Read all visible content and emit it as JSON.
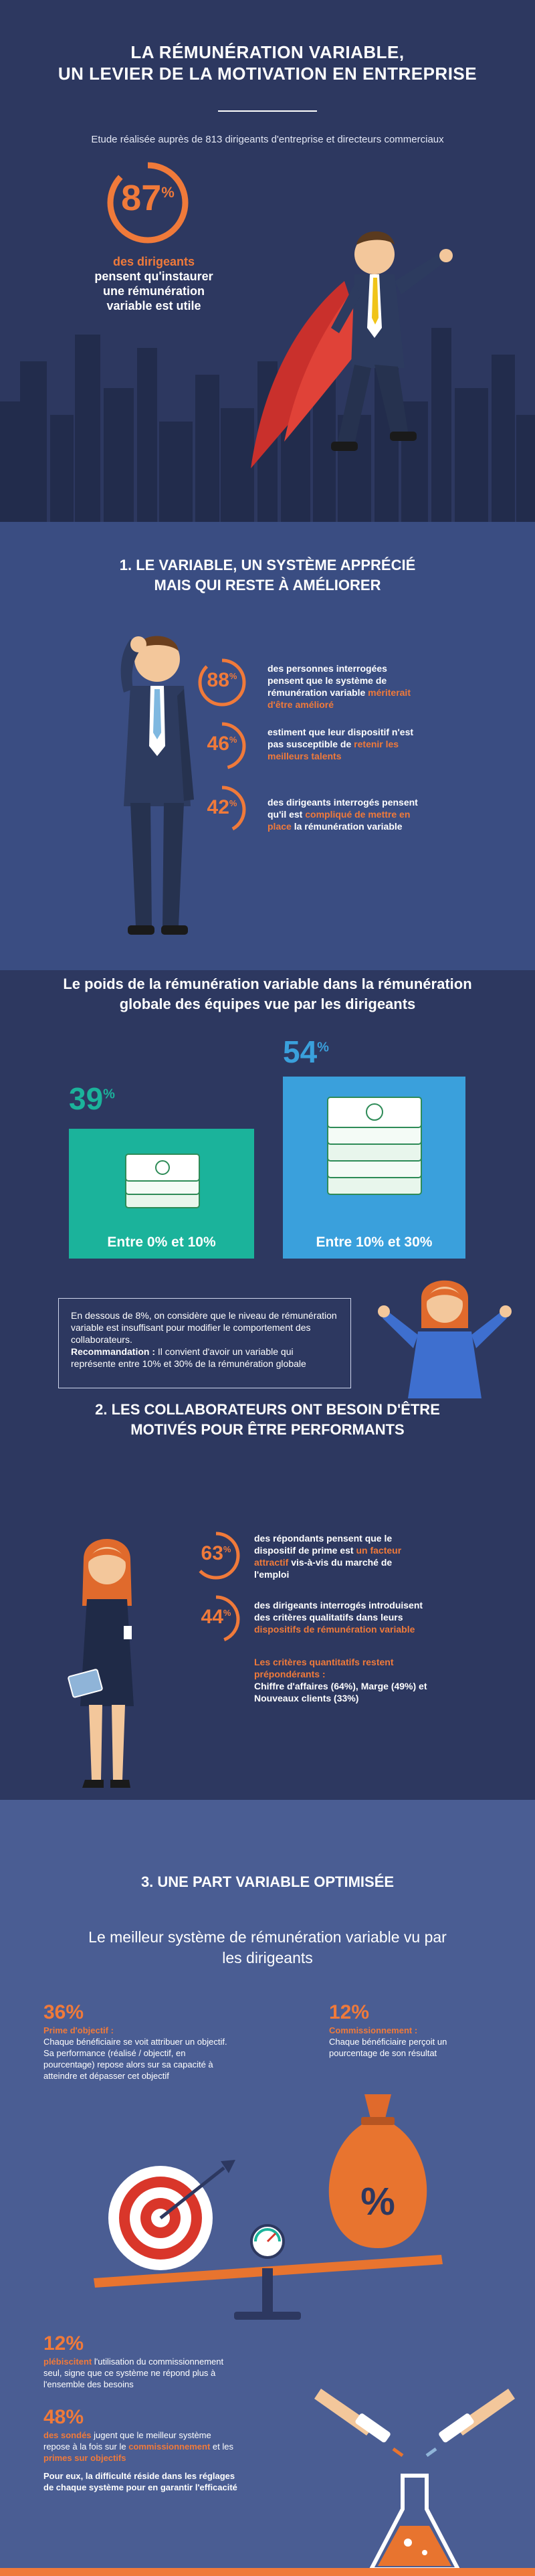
{
  "colors": {
    "navy": "#2d3860",
    "blue": "#3a4d82",
    "mid": "#4a5d93",
    "orange": "#f07a3a",
    "teal": "#1bb39b",
    "sky": "#3aa0dc"
  },
  "header": {
    "title_line1": "LA RÉMUNÉRATION VARIABLE,",
    "title_line2": "UN LEVIER DE LA MOTIVATION EN ENTREPRISE",
    "subtitle": "Etude réalisée auprès de 813 dirigeants d'entreprise et directeurs commerciaux",
    "hero_value": "87",
    "hero_unit": "%",
    "hero_label_hl": "des dirigeants",
    "hero_label": "pensent qu'instaurer une rémunération variable est utile"
  },
  "section1": {
    "title_line1": "1. LE VARIABLE, UN SYSTÈME APPRÉCIÉ",
    "title_line2": "MAIS QUI RESTE À AMÉLIORER",
    "stats": [
      {
        "value": "88",
        "unit": "%",
        "text_a": "des personnes interrogées pensent que le système de rémunération variable ",
        "text_hl": "mériterait d'être amélioré",
        "text_b": ""
      },
      {
        "value": "46",
        "unit": "%",
        "text_a": "estiment que leur dispositif n'est pas susceptible de ",
        "text_hl": "retenir les meilleurs talents",
        "text_b": ""
      },
      {
        "value": "42",
        "unit": "%",
        "text_a": "des dirigeants interrogés pensent qu'il est ",
        "text_hl": "compliqué de mettre en place",
        "text_b": " la rémunération variable"
      }
    ]
  },
  "weight": {
    "title_line1": "Le poids de la rémunération variable dans la rémunération",
    "title_line2": "globale des équipes vue par les dirigeants",
    "left_value": "39",
    "left_unit": "%",
    "left_label": "Entre 0% et 10%",
    "right_value": "54",
    "right_unit": "%",
    "right_label": "Entre 10% et 30%",
    "note_a": "En dessous de 8%, on considère que le niveau de rémunération variable est insuffisant pour modifier le comportement des collaborateurs.",
    "note_b_bold": "Recommandation :",
    "note_b": " Il convient d'avoir un variable qui représente entre 10% et 30% de la rémunération globale"
  },
  "section2": {
    "title_line1": "2. LES COLLABORATEURS ONT BESOIN D'ÊTRE",
    "title_line2": "MOTIVÉS POUR ÊTRE PERFORMANTS",
    "stats": [
      {
        "value": "63",
        "unit": "%",
        "text_a": "des répondants pensent que le dispositif de prime est ",
        "text_hl": "un facteur attractif",
        "text_b": " vis-à-vis du marché de l'emploi"
      },
      {
        "value": "44",
        "unit": "%",
        "text_a": "des dirigeants interrogés introduisent des critères qualitatifs dans leurs ",
        "text_hl": "dispositifs de rémunération variable",
        "text_b": ""
      }
    ],
    "criteria_hl": "Les critères quantitatifs restent prépondérants :",
    "criteria": "Chiffre d'affaires (64%), Marge (49%) et Nouveaux clients (33%)"
  },
  "section3": {
    "title": "3. UNE PART VARIABLE OPTIMISÉE",
    "subtitle_line1": "Le meilleur système de rémunération variable vu par",
    "subtitle_line2": "les dirigeants",
    "left_value": "36%",
    "left_title": "Prime d'objectif :",
    "left_text": "Chaque bénéficiaire se voit attribuer un objectif. Sa performance (réalisé / objectif, en pourcentage) repose alors sur sa capacité à atteindre et dépasser cet objectif",
    "right_value": "12%",
    "right_title": "Commissionnement :",
    "right_text": "Chaque bénéficiaire perçoit un pourcentage de son résultat",
    "bag_symbol": "%",
    "bottom1_value": "12%",
    "bottom1_hl": "plébiscitent",
    "bottom1_text": " l'utilisation du commissionnement seul, signe que ce système ne répond plus à l'ensemble des besoins",
    "bottom2_value": "48%",
    "bottom2_hl": "des sondés",
    "bottom2_text_a": " jugent que le meilleur système repose à la fois sur le ",
    "bottom2_hl2": "commissionnement",
    "bottom2_text_b": " et les ",
    "bottom2_hl3": "primes sur objectifs",
    "bottom2_note": "Pour eux, la difficulté réside dans les réglages de chaque système pour en garantir l'efficacité"
  }
}
